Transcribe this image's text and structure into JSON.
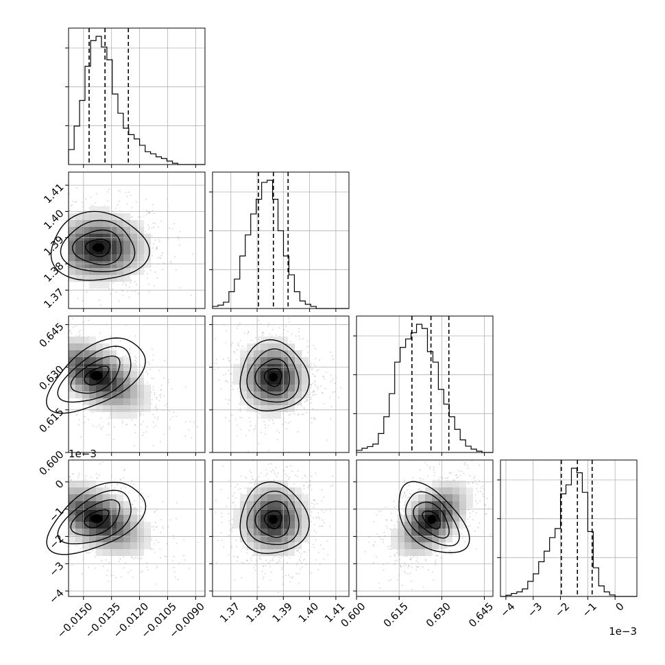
{
  "chart_data": {
    "type": "corner",
    "parameters": [
      {
        "range": [
          -0.0158,
          -0.0085
        ],
        "ticks": [
          -0.015,
          -0.0135,
          -0.012,
          -0.0105,
          -0.009
        ],
        "tick_labels": [
          "−0.0150",
          "−0.0135",
          "−0.0120",
          "−0.0105",
          "−0.0090"
        ],
        "quantiles": [
          -0.0147,
          -0.01385,
          -0.0126
        ],
        "histogram": {
          "bin_edges": [
            -0.0158,
            -0.0155,
            -0.01521,
            -0.01492,
            -0.01462,
            -0.01433,
            -0.01404,
            -0.01375,
            -0.01346,
            -0.01316,
            -0.01287,
            -0.01258,
            -0.01229,
            -0.012,
            -0.0117,
            -0.01141,
            -0.01112,
            -0.01083,
            -0.01054,
            -0.01024,
            -0.00995,
            -0.00966,
            -0.00937,
            -0.00908,
            -0.00878,
            -0.0085
          ],
          "counts": [
            35,
            90,
            150,
            230,
            290,
            300,
            275,
            245,
            165,
            120,
            85,
            70,
            60,
            45,
            30,
            25,
            18,
            14,
            8,
            3,
            0,
            0,
            0,
            0,
            0
          ]
        },
        "mode": [
          -0.0142,
          0
        ]
      },
      {
        "range": [
          1.363,
          1.415
        ],
        "ticks": [
          1.37,
          1.38,
          1.39,
          1.4,
          1.41
        ],
        "tick_labels": [
          "1.37",
          "1.38",
          "1.39",
          "1.40",
          "1.41"
        ],
        "quantiles": [
          1.3805,
          1.3862,
          1.3918
        ],
        "histogram": {
          "bin_edges": [
            1.363,
            1.36508,
            1.36716,
            1.36924,
            1.37132,
            1.3734,
            1.37548,
            1.37756,
            1.37964,
            1.38172,
            1.3838,
            1.38588,
            1.38796,
            1.39004,
            1.39212,
            1.3942,
            1.39628,
            1.39836,
            1.40044,
            1.40252,
            1.4046,
            1.40668,
            1.40876,
            1.41084,
            1.41292,
            1.415
          ],
          "counts": [
            5,
            8,
            15,
            40,
            70,
            125,
            175,
            225,
            260,
            300,
            305,
            260,
            185,
            125,
            80,
            40,
            18,
            10,
            5,
            0,
            0,
            0,
            0,
            0,
            0
          ]
        },
        "mode": [
          1.3862,
          0
        ]
      },
      {
        "range": [
          0.6,
          0.648
        ],
        "ticks": [
          0.6,
          0.615,
          0.63,
          0.645
        ],
        "tick_labels": [
          "0.600",
          "0.615",
          "0.630",
          "0.645"
        ],
        "quantiles": [
          0.6195,
          0.6262,
          0.6325
        ],
        "histogram": {
          "bin_edges": [
            0.6,
            0.60192,
            0.60384,
            0.60576,
            0.60768,
            0.6096,
            0.61152,
            0.61344,
            0.61536,
            0.61728,
            0.6192,
            0.62112,
            0.62304,
            0.62496,
            0.62688,
            0.6288,
            0.63072,
            0.63264,
            0.63456,
            0.63648,
            0.6384,
            0.64032,
            0.64224,
            0.64416,
            0.64608,
            0.648
          ],
          "counts": [
            5,
            10,
            14,
            20,
            45,
            85,
            140,
            215,
            250,
            270,
            285,
            305,
            295,
            240,
            215,
            150,
            115,
            85,
            55,
            30,
            15,
            8,
            3,
            0,
            0
          ]
        },
        "mode": [
          0.6262,
          0
        ]
      },
      {
        "range": [
          -0.0042,
          0.0008
        ],
        "scale_label": "1e−3",
        "ticks": [
          -0.004,
          -0.003,
          -0.002,
          -0.001,
          0.0
        ],
        "tick_labels": [
          "−4",
          "−3",
          "−2",
          "−1",
          "0"
        ],
        "quantiles": [
          -0.00197,
          -0.00138,
          -0.00084
        ],
        "histogram": {
          "bin_edges": [
            -0.0042,
            -0.004,
            -0.0038,
            -0.0036,
            -0.0034,
            -0.0032,
            -0.003,
            -0.0028,
            -0.0026,
            -0.0024,
            -0.0022,
            -0.002,
            -0.0018,
            -0.0016,
            -0.0014,
            -0.0012,
            -0.001,
            -0.0008,
            -0.0006,
            -0.0004,
            -0.0002,
            0.0,
            0.0002,
            0.0004,
            0.0006,
            0.0008
          ],
          "counts": [
            0,
            4,
            10,
            15,
            25,
            50,
            75,
            115,
            150,
            195,
            225,
            340,
            370,
            425,
            410,
            345,
            215,
            95,
            35,
            15,
            5,
            0,
            0,
            0,
            0
          ]
        },
        "mode": [
          -0.0014,
          0
        ]
      }
    ],
    "pair_modes": [
      {
        "row": 1,
        "col": 0,
        "mode": [
          -0.0142,
          1.3862
        ],
        "spread": [
          0.0013,
          0.0065
        ],
        "tilt": 0.0
      },
      {
        "row": 2,
        "col": 0,
        "mode": [
          -0.0143,
          0.627
        ],
        "spread": [
          0.0013,
          0.0065
        ],
        "tilt": -0.55
      },
      {
        "row": 2,
        "col": 1,
        "mode": [
          1.3862,
          0.6265
        ],
        "spread": [
          0.0065,
          0.0062
        ],
        "tilt": 0.0
      },
      {
        "row": 3,
        "col": 0,
        "mode": [
          -0.0143,
          -0.00135
        ],
        "spread": [
          0.0013,
          0.00065
        ],
        "tilt": -0.5
      },
      {
        "row": 3,
        "col": 1,
        "mode": [
          1.3862,
          -0.00138
        ],
        "spread": [
          0.0065,
          0.00065
        ],
        "tilt": 0.0
      },
      {
        "row": 3,
        "col": 2,
        "mode": [
          0.6265,
          -0.00138
        ],
        "spread": [
          0.0062,
          0.00065
        ],
        "tilt": 0.5
      }
    ]
  }
}
